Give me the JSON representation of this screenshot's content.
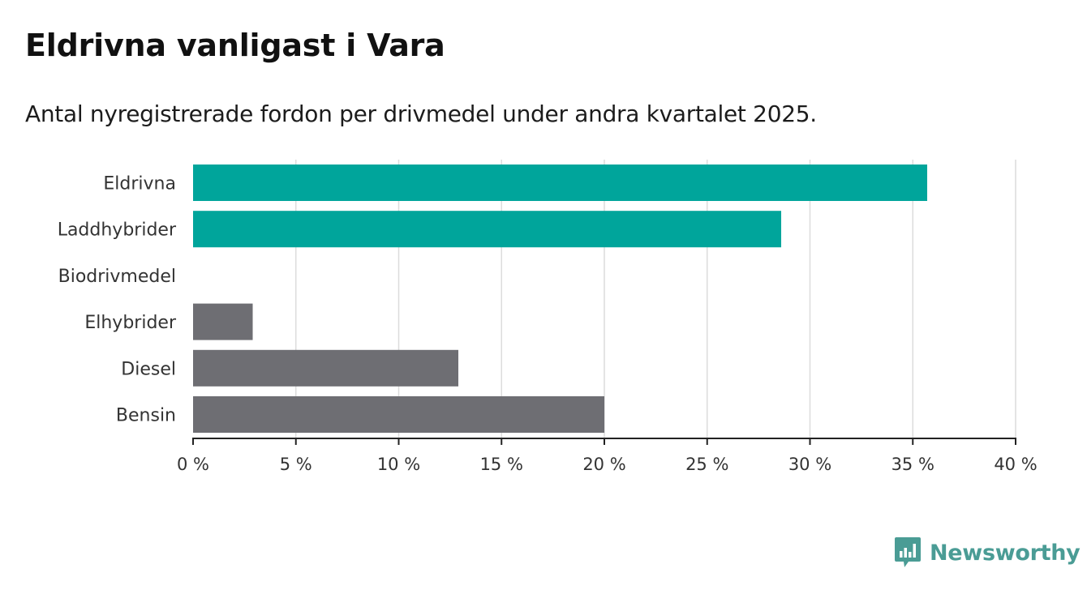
{
  "chart_data": {
    "type": "bar",
    "orientation": "horizontal",
    "title": "Eldrivna vanligast i Vara",
    "subtitle": "Antal nyregistrerade fordon per drivmedel under andra kvartalet 2025.",
    "categories": [
      "Eldrivna",
      "Laddhybrider",
      "Biodrivmedel",
      "Elhybrider",
      "Diesel",
      "Bensin"
    ],
    "values": [
      35.7,
      28.6,
      0,
      2.9,
      12.9,
      20.0
    ],
    "xlim": [
      0,
      40
    ],
    "xticks": [
      0,
      5,
      10,
      15,
      20,
      25,
      30,
      35,
      40
    ],
    "tick_labels": [
      "0 %",
      "5 %",
      "10 %",
      "15 %",
      "20 %",
      "25 %",
      "30 %",
      "35 %",
      "40 %"
    ],
    "grid": "vertical",
    "colors": {
      "highlight": "#00a59b",
      "other": "#6e6e73",
      "grid": "#dcdcdc",
      "axis": "#222222"
    },
    "highlight_categories": [
      "Eldrivna",
      "Laddhybrider",
      "Biodrivmedel"
    ]
  },
  "brand": {
    "name": "Newsworthy",
    "icon": "newsworthy-logo-icon",
    "color": "#4a9c95"
  }
}
